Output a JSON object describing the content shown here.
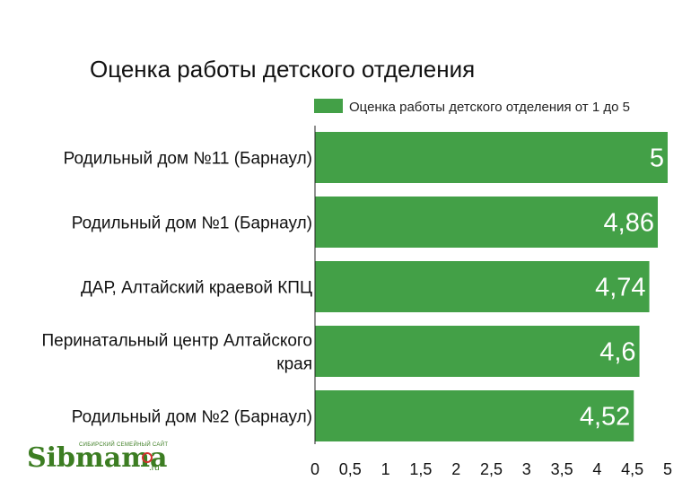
{
  "chart_data": {
    "type": "bar",
    "orientation": "horizontal",
    "title": "Оценка работы детского отделения",
    "categories": [
      [
        "Родильный дом №11 (Барнаул)"
      ],
      [
        "Родильный дом №1 (Барнаул)"
      ],
      [
        "ДАР, Алтайский краевой КПЦ"
      ],
      [
        "Перинатальный центр Алтайского",
        "края"
      ],
      [
        "Родильный дом №2 (Барнаул)"
      ]
    ],
    "series": [
      {
        "name": "Оценка работы детского отделения от 1 до 5",
        "values": [
          5,
          4.86,
          4.74,
          4.6,
          4.52
        ],
        "value_labels": [
          "5",
          "4,86",
          "4,74",
          "4,6",
          "4,52"
        ],
        "color": "#43a047"
      }
    ],
    "xlim": [
      0,
      5
    ],
    "x_ticks": [
      0,
      0.5,
      1,
      1.5,
      2,
      2.5,
      3,
      3.5,
      4,
      4.5,
      5
    ],
    "x_tick_labels": [
      "0",
      "0,5",
      "1",
      "1,5",
      "2",
      "2,5",
      "3",
      "3,5",
      "4",
      "4,5",
      "5"
    ],
    "legend_position": "top-right",
    "grid": false
  },
  "watermark": {
    "logo_text": "Sibmama",
    "logo_tld": ".ru",
    "logo_tagline": "СИБИРСКИЙ СЕМЕЙНЫЙ САЙТ",
    "colors": {
      "brand_green": "#3c7d22",
      "accent_red": "#d32f2f"
    }
  }
}
